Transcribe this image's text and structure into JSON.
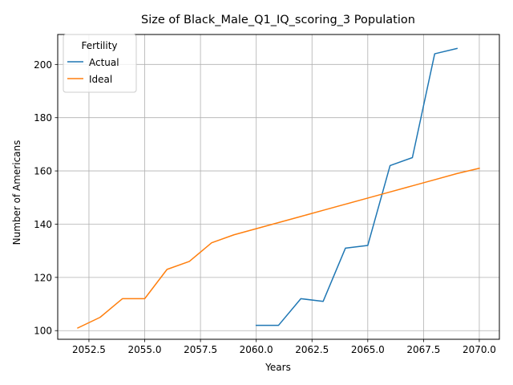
{
  "chart_data": {
    "type": "line",
    "title": "Size of Black_Male_Q1_IQ_scoring_3 Population",
    "xlabel": "Years",
    "ylabel": "Number of Americans",
    "xlim": [
      2051.1,
      2070.9
    ],
    "ylim": [
      96.75,
      211.25
    ],
    "xticks": [
      2052.5,
      2055.0,
      2057.5,
      2060.0,
      2062.5,
      2065.0,
      2067.5,
      2070.0
    ],
    "xtick_labels": [
      "2052.5",
      "2055.0",
      "2057.5",
      "2060.0",
      "2062.5",
      "2065.0",
      "2067.5",
      "2070.0"
    ],
    "yticks": [
      100,
      120,
      140,
      160,
      180,
      200
    ],
    "ytick_labels": [
      "100",
      "120",
      "140",
      "160",
      "180",
      "200"
    ],
    "grid": true,
    "legend": {
      "title": "Fertility",
      "placement": "top-left"
    },
    "series": [
      {
        "name": "Actual",
        "color": "#1f77b4",
        "x": [
          2060,
          2061,
          2062,
          2063,
          2064,
          2065,
          2066,
          2067,
          2068,
          2069
        ],
        "y": [
          102,
          102,
          112,
          111,
          131,
          132,
          162,
          165,
          204,
          206
        ]
      },
      {
        "name": "Ideal",
        "color": "#ff7f0e",
        "x": [
          2052,
          2053,
          2054,
          2055,
          2056,
          2057,
          2058,
          2059,
          2060,
          2061,
          2062,
          2063,
          2064,
          2065,
          2066,
          2067,
          2068,
          2069,
          2070
        ],
        "y": [
          101,
          105,
          112,
          112,
          123,
          126,
          133,
          136,
          138.3,
          140.6,
          142.9,
          145.2,
          147.5,
          149.8,
          152.1,
          154.4,
          156.7,
          159,
          161
        ]
      }
    ]
  }
}
